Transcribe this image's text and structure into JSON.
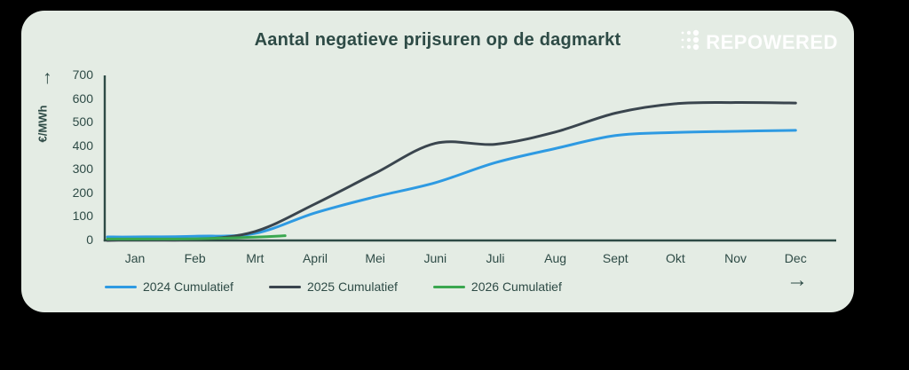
{
  "logo": {
    "text": "REPOWERED"
  },
  "arrows": {
    "up": "↑",
    "right": "→"
  },
  "chart_data": {
    "type": "line",
    "title": "Aantal negatieve prijsuren op de dagmarkt",
    "xlabel": "",
    "ylabel": "€/MWh",
    "ylim": [
      0,
      700
    ],
    "yticks": [
      0,
      100,
      200,
      300,
      400,
      500,
      600,
      700
    ],
    "categories": [
      "Jan",
      "Feb",
      "Mrt",
      "April",
      "Mei",
      "Juni",
      "Juli",
      "Aug",
      "Sept",
      "Okt",
      "Nov",
      "Dec"
    ],
    "grid": false,
    "legend_position": "bottom",
    "series": [
      {
        "name": "2024 Cumulatief",
        "color": "#2e9ae2",
        "values": [
          15,
          18,
          30,
          117,
          185,
          245,
          330,
          390,
          445,
          458,
          463,
          467
        ]
      },
      {
        "name": "2025 Cumulatief",
        "color": "#3a454e",
        "values": [
          0,
          3,
          38,
          155,
          285,
          412,
          408,
          460,
          540,
          580,
          585,
          583
        ]
      },
      {
        "name": "2026 Cumulatief",
        "color": "#3aa74f",
        "values": [
          6,
          7,
          14,
          20
        ],
        "x": [
          0,
          1,
          2,
          2.5
        ]
      }
    ]
  }
}
